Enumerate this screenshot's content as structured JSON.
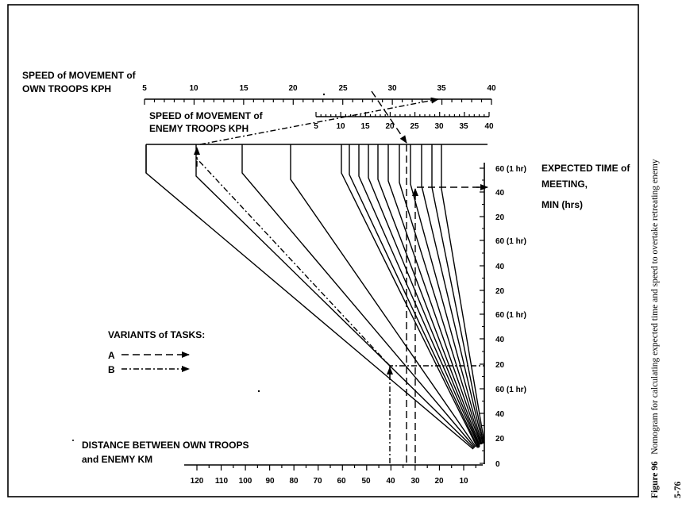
{
  "own_speed": {
    "title_line1": "SPEED of MOVEMENT of",
    "title_line2": "OWN TROOPS KPH",
    "ticks": [
      "5",
      "10",
      "15",
      "20",
      "25",
      "30",
      "35",
      "40"
    ],
    "tick_values": [
      5,
      10,
      15,
      20,
      25,
      30,
      35,
      40
    ]
  },
  "enemy_speed": {
    "title_line1": "SPEED of MOVEMENT of",
    "title_line2": "ENEMY TROOPS KPH",
    "ticks": [
      "5",
      "10",
      "15",
      "20",
      "25",
      "30",
      "35",
      "40"
    ],
    "tick_values": [
      5,
      10,
      15,
      20,
      25,
      30,
      35,
      40
    ]
  },
  "time_scale": {
    "title_line1": "EXPECTED TIME of",
    "title_line2": "MEETING,",
    "title_line3": "MIN  (hrs)",
    "labels": [
      "60 (1 hr)",
      "40",
      "20",
      "60 (1 hr)",
      "40",
      "20",
      "60 (1 hr)",
      "40",
      "20",
      "60 (1 hr)",
      "40",
      "20",
      "0"
    ]
  },
  "distance_scale": {
    "title_line1": "DISTANCE BETWEEN OWN TROOPS",
    "title_line2": "and ENEMY KM",
    "ticks": [
      "120",
      "110",
      "100",
      "90",
      "80",
      "70",
      "60",
      "50",
      "40",
      "30",
      "20",
      "10"
    ],
    "tick_values": [
      120,
      110,
      100,
      90,
      80,
      70,
      60,
      50,
      40,
      30,
      20,
      10
    ]
  },
  "legend": {
    "title": "VARIANTS of TASKS:",
    "a_label": "A",
    "b_label": "B"
  },
  "caption": {
    "figure_label": "Figure 96",
    "text": "Nomogram for calculating expected time and speed to overtake retreating enemy",
    "page_number": "5-76"
  }
}
